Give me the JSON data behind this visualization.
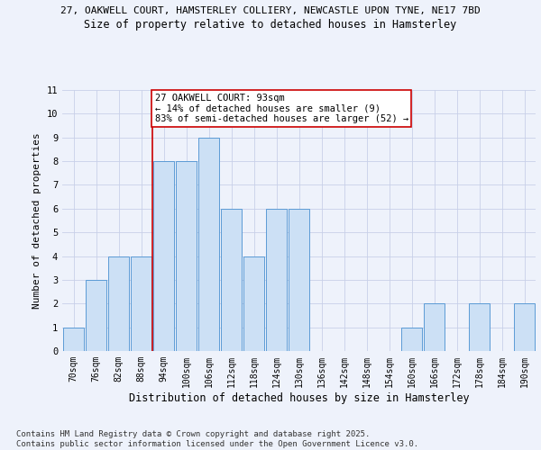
{
  "title_line1": "27, OAKWELL COURT, HAMSTERLEY COLLIERY, NEWCASTLE UPON TYNE, NE17 7BD",
  "title_line2": "Size of property relative to detached houses in Hamsterley",
  "xlabel": "Distribution of detached houses by size in Hamsterley",
  "ylabel": "Number of detached properties",
  "categories": [
    "70sqm",
    "76sqm",
    "82sqm",
    "88sqm",
    "94sqm",
    "100sqm",
    "106sqm",
    "112sqm",
    "118sqm",
    "124sqm",
    "130sqm",
    "136sqm",
    "142sqm",
    "148sqm",
    "154sqm",
    "160sqm",
    "166sqm",
    "172sqm",
    "178sqm",
    "184sqm",
    "190sqm"
  ],
  "values": [
    1,
    3,
    4,
    4,
    8,
    8,
    9,
    6,
    4,
    6,
    6,
    0,
    0,
    0,
    0,
    1,
    2,
    0,
    2,
    0,
    2
  ],
  "bar_color": "#cce0f5",
  "bar_edge_color": "#5b9bd5",
  "ref_line_index": 4,
  "ref_line_color": "#cc0000",
  "annotation_text": "27 OAKWELL COURT: 93sqm\n← 14% of detached houses are smaller (9)\n83% of semi-detached houses are larger (52) →",
  "annotation_box_color": "#cc0000",
  "ylim": [
    0,
    11
  ],
  "yticks": [
    0,
    1,
    2,
    3,
    4,
    5,
    6,
    7,
    8,
    9,
    10,
    11
  ],
  "footnote": "Contains HM Land Registry data © Crown copyright and database right 2025.\nContains public sector information licensed under the Open Government Licence v3.0.",
  "background_color": "#eef2fb",
  "grid_color": "#c8d0e8",
  "title_fontsize": 8.0,
  "subtitle_fontsize": 8.5,
  "axis_label_fontsize": 8.0,
  "tick_fontsize": 7.0,
  "annotation_fontsize": 7.5,
  "footnote_fontsize": 6.5
}
